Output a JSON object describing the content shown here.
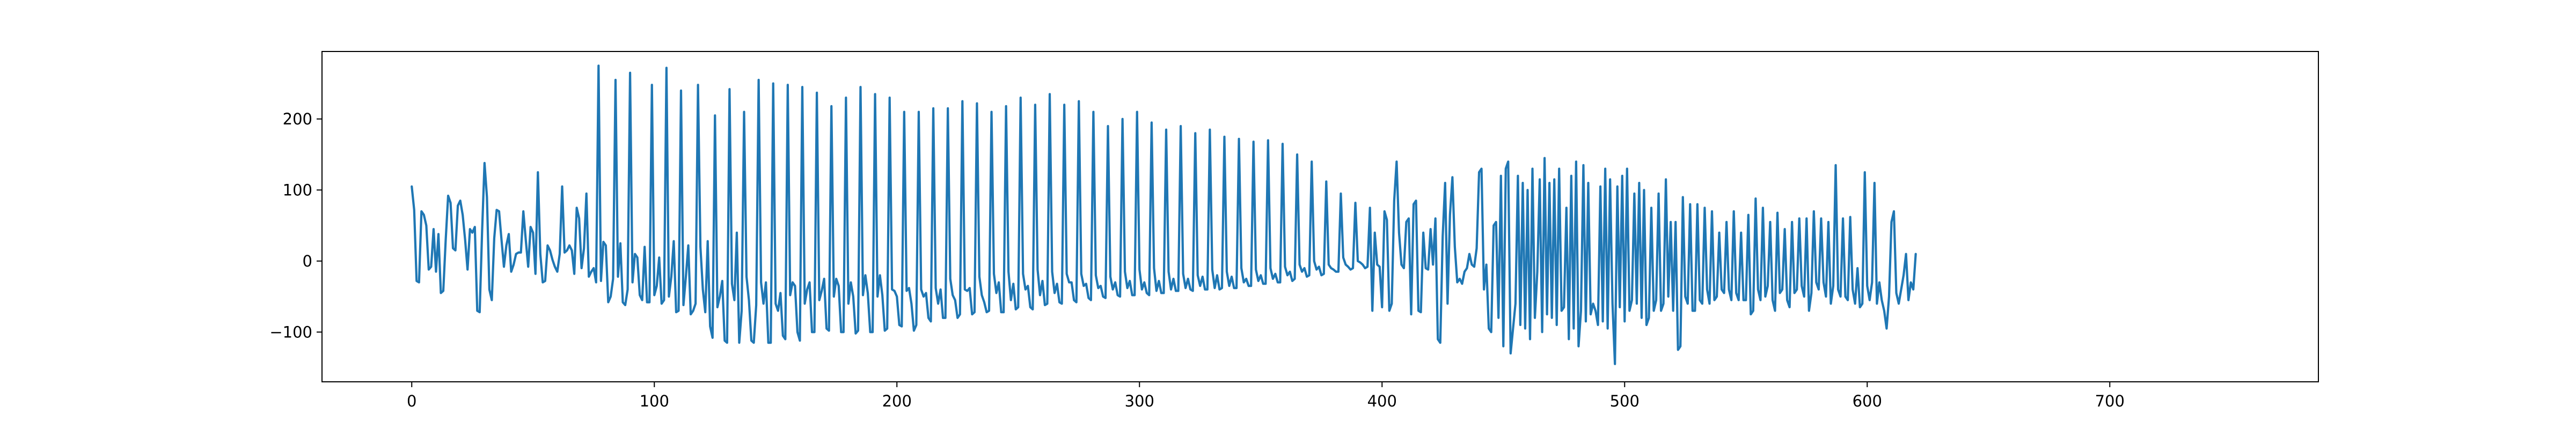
{
  "chart_data": {
    "type": "line",
    "title": "",
    "xlabel": "",
    "ylabel": "",
    "xlim": [
      -37,
      786
    ],
    "ylim": [
      -170,
      295
    ],
    "x_ticks": [
      0,
      100,
      200,
      300,
      400,
      500,
      600,
      700
    ],
    "y_ticks": [
      -100,
      0,
      100,
      200
    ],
    "x_tick_labels": [
      "0",
      "100",
      "200",
      "300",
      "400",
      "500",
      "600",
      "700"
    ],
    "y_tick_labels": [
      "−100",
      "0",
      "100",
      "200"
    ],
    "grid": false,
    "legend": "none",
    "line_color": "#1f77b4",
    "series": [
      {
        "x_start": 0,
        "x_step": 1,
        "values": [
          105,
          72,
          -28,
          -30,
          70,
          65,
          50,
          -12,
          -8,
          45,
          -15,
          38,
          -45,
          -42,
          30,
          92,
          82,
          18,
          15,
          78,
          85,
          65,
          30,
          -12,
          45,
          40,
          48,
          -70,
          -72,
          42,
          138,
          90,
          -40,
          -55,
          32,
          72,
          70,
          30,
          -8,
          22,
          38,
          -15,
          -5,
          10,
          12,
          12,
          70,
          30,
          -8,
          48,
          40,
          -18,
          125,
          10,
          -30,
          -28,
          22,
          15,
          2,
          -8,
          -15,
          10,
          105,
          12,
          15,
          22,
          15,
          -18,
          75,
          60,
          -10,
          18,
          95,
          -22,
          -15,
          -10,
          -30,
          275,
          -28,
          27,
          22,
          -58,
          -50,
          -25,
          255,
          -22,
          25,
          -58,
          -62,
          -40,
          265,
          -30,
          10,
          5,
          -48,
          -55,
          20,
          -58,
          -58,
          248,
          -48,
          -35,
          5,
          -60,
          -55,
          272,
          -50,
          -22,
          28,
          -72,
          -70,
          240,
          -62,
          -22,
          22,
          -75,
          -70,
          -60,
          248,
          20,
          -40,
          -72,
          28,
          -92,
          -108,
          205,
          -65,
          -50,
          -28,
          -112,
          -115,
          242,
          -32,
          -55,
          40,
          -115,
          -70,
          210,
          -22,
          -55,
          -112,
          -115,
          -62,
          255,
          -30,
          -60,
          -30,
          -115,
          -115,
          250,
          -60,
          -70,
          -45,
          -105,
          -110,
          248,
          -48,
          -30,
          -35,
          -100,
          -112,
          245,
          -60,
          -40,
          -30,
          -100,
          -100,
          237,
          -55,
          -42,
          -25,
          -95,
          -98,
          218,
          -50,
          -25,
          -35,
          -100,
          -100,
          230,
          -60,
          -30,
          -50,
          -102,
          -98,
          245,
          -48,
          -20,
          -45,
          -100,
          -100,
          235,
          -50,
          -20,
          -48,
          -98,
          -95,
          230,
          -40,
          -42,
          -50,
          -90,
          -92,
          210,
          -42,
          -38,
          -60,
          -98,
          -90,
          210,
          -40,
          -50,
          -45,
          -80,
          -85,
          215,
          -38,
          -60,
          -40,
          -80,
          -80,
          215,
          -25,
          -48,
          -55,
          -80,
          -75,
          225,
          -40,
          -42,
          -38,
          -75,
          -72,
          222,
          -22,
          -48,
          -58,
          -72,
          -70,
          210,
          -18,
          -45,
          -30,
          -72,
          -72,
          218,
          -15,
          -55,
          -32,
          -68,
          -65,
          230,
          -18,
          -40,
          -35,
          -65,
          -68,
          220,
          -12,
          -48,
          -28,
          -62,
          -60,
          235,
          -15,
          -45,
          -32,
          -58,
          -60,
          220,
          -18,
          -30,
          -30,
          -55,
          -58,
          225,
          -18,
          -35,
          -32,
          -52,
          -55,
          210,
          -20,
          -38,
          -35,
          -50,
          -52,
          190,
          -22,
          -40,
          -30,
          -48,
          -50,
          200,
          -15,
          -38,
          -28,
          -48,
          -48,
          210,
          -12,
          -40,
          -30,
          -45,
          -48,
          195,
          -10,
          -42,
          -28,
          -45,
          -45,
          185,
          -15,
          -40,
          -25,
          -42,
          -42,
          190,
          -18,
          -38,
          -25,
          -40,
          -42,
          180,
          -20,
          -35,
          -22,
          -40,
          -40,
          185,
          -12,
          -38,
          -20,
          -40,
          -38,
          175,
          -15,
          -35,
          -22,
          -38,
          -38,
          172,
          -10,
          -30,
          -25,
          -35,
          -35,
          168,
          -12,
          -28,
          -20,
          -32,
          -32,
          170,
          -10,
          -25,
          -18,
          -30,
          -30,
          165,
          -8,
          -20,
          -15,
          -28,
          -25,
          150,
          -5,
          -15,
          -10,
          -22,
          -20,
          140,
          0,
          -12,
          -8,
          -20,
          -18,
          112,
          -5,
          -10,
          -12,
          -15,
          -15,
          95,
          5,
          -5,
          -8,
          -12,
          -10,
          82,
          0,
          -2,
          -5,
          -10,
          -8,
          75,
          -70,
          40,
          -5,
          -8,
          -65,
          70,
          58,
          -70,
          -60,
          85,
          140,
          40,
          -5,
          -10,
          55,
          60,
          -75,
          80,
          85,
          -70,
          -72,
          40,
          -10,
          -12,
          45,
          -5,
          60,
          -110,
          -115,
          35,
          110,
          -60,
          65,
          118,
          20,
          -30,
          -25,
          -32,
          -15,
          -10,
          10,
          -5,
          -8,
          18,
          125,
          130,
          -40,
          -5,
          -95,
          -100,
          50,
          55,
          -80,
          120,
          -120,
          130,
          140,
          -130,
          -95,
          -60,
          120,
          -90,
          110,
          -95,
          100,
          -110,
          130,
          -80,
          -15,
          115,
          -100,
          145,
          -75,
          110,
          -80,
          115,
          -90,
          130,
          -70,
          -65,
          75,
          -110,
          120,
          -95,
          140,
          -120,
          -70,
          135,
          -85,
          110,
          -75,
          -60,
          -70,
          -90,
          105,
          -85,
          130,
          -95,
          115,
          -60,
          -145,
          105,
          -65,
          120,
          -85,
          130,
          -70,
          -55,
          95,
          -60,
          110,
          -80,
          100,
          -90,
          -80,
          75,
          -70,
          -55,
          95,
          -70,
          -60,
          115,
          -50,
          55,
          -70,
          55,
          -125,
          -120,
          90,
          -50,
          -60,
          80,
          -70,
          -70,
          80,
          -55,
          -60,
          75,
          -40,
          -60,
          70,
          -55,
          -50,
          40,
          -40,
          -45,
          55,
          -40,
          -55,
          70,
          -45,
          -55,
          40,
          -55,
          -55,
          65,
          -75,
          -70,
          88,
          -40,
          -55,
          75,
          -50,
          -35,
          55,
          -55,
          -70,
          68,
          -45,
          -40,
          45,
          -55,
          -65,
          55,
          -45,
          -40,
          60,
          -35,
          -50,
          60,
          -70,
          -45,
          70,
          -30,
          -40,
          60,
          -30,
          -50,
          55,
          -60,
          -35,
          135,
          -40,
          -50,
          60,
          -50,
          -55,
          62,
          -40,
          -60,
          -10,
          -65,
          -60,
          125,
          -35,
          -55,
          -30,
          110,
          -60,
          -30,
          -55,
          -70,
          -95,
          -50,
          55,
          70,
          -45,
          -60,
          -40,
          -20,
          10,
          -55,
          -30,
          -40,
          10
        ]
      }
    ]
  }
}
